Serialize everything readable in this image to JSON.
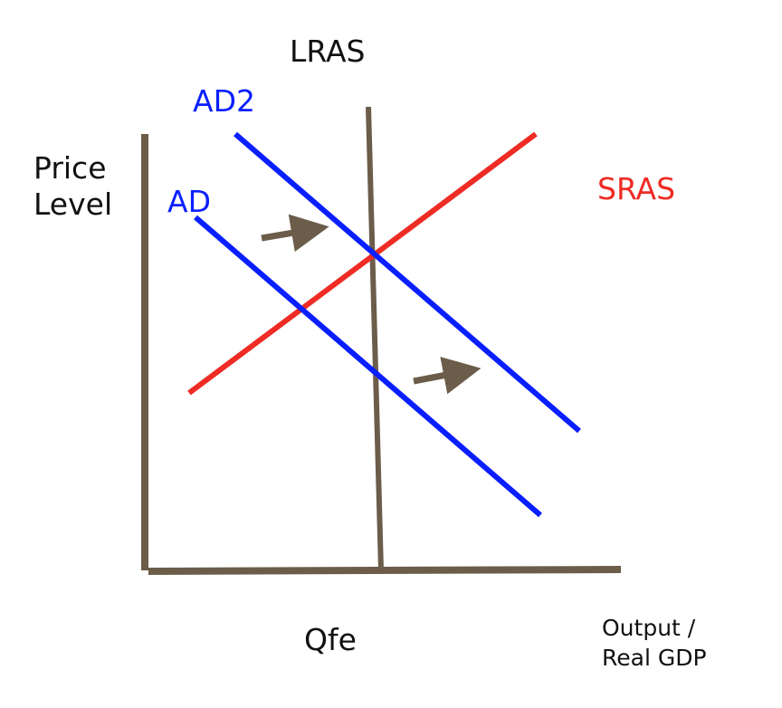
{
  "labels": {
    "lras": "LRAS",
    "ad2": "AD2",
    "ad": "AD",
    "sras": "SRAS",
    "y_axis_line1": "Price",
    "y_axis_line2": "Level",
    "qfe": "Qfe",
    "x_axis_line1": "Output /",
    "x_axis_line2": "Real GDP"
  },
  "colors": {
    "axis": "#6b5d4a",
    "aggregate_demand": "#0a1fff",
    "sras": "#ee2b24",
    "lras": "#6b5d4a",
    "arrow": "#6b5d4a",
    "text": "#111111"
  }
}
